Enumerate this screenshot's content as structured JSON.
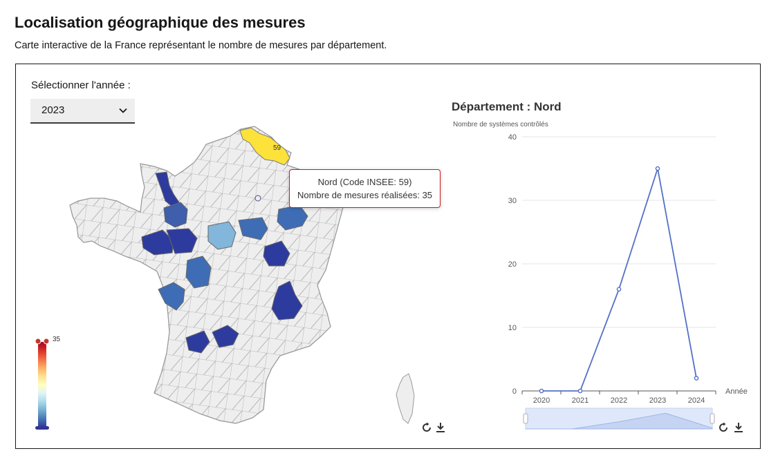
{
  "header": {
    "title": "Localisation géographique des mesures",
    "subtitle": "Carte interactive de la France représentant le nombre de mesures par département."
  },
  "year_selector": {
    "label": "Sélectionner l'année :",
    "value": "2023"
  },
  "map": {
    "highlight_label": "59",
    "tooltip": {
      "line1": "Nord (Code INSEE: 59)",
      "line2": "Nombre de mesures réalisées: 35"
    },
    "legend": {
      "max_label": "35",
      "min": 0,
      "max": 35,
      "colors": [
        "#313695",
        "#4575b4",
        "#74add1",
        "#abd9e9",
        "#e0f3f8",
        "#ffffbf",
        "#fee090",
        "#fdae61",
        "#f46d43",
        "#d73027",
        "#a50026"
      ]
    },
    "colors": {
      "default_fill": "#eeeeee",
      "border": "#9a9a9a",
      "highlight": "#fde23b",
      "dark": "#2e3b9e",
      "mid": "#3f6db5",
      "light": "#82b6da"
    },
    "toolbox": [
      "restore-icon",
      "download-icon"
    ]
  },
  "chart_data": {
    "type": "line",
    "title": "Département : Nord",
    "ylabel": "Nombre de systèmes contrôlés",
    "xlabel": "Année",
    "categories": [
      "2020",
      "2021",
      "2022",
      "2023",
      "2024"
    ],
    "series": [
      {
        "values": [
          0,
          0,
          16,
          35,
          2
        ]
      }
    ],
    "ylim": [
      0,
      40
    ],
    "yticks": [
      0,
      10,
      20,
      30,
      40
    ],
    "grid": true,
    "color": "#5470c6",
    "toolbox": [
      "restore-icon",
      "download-icon"
    ]
  }
}
